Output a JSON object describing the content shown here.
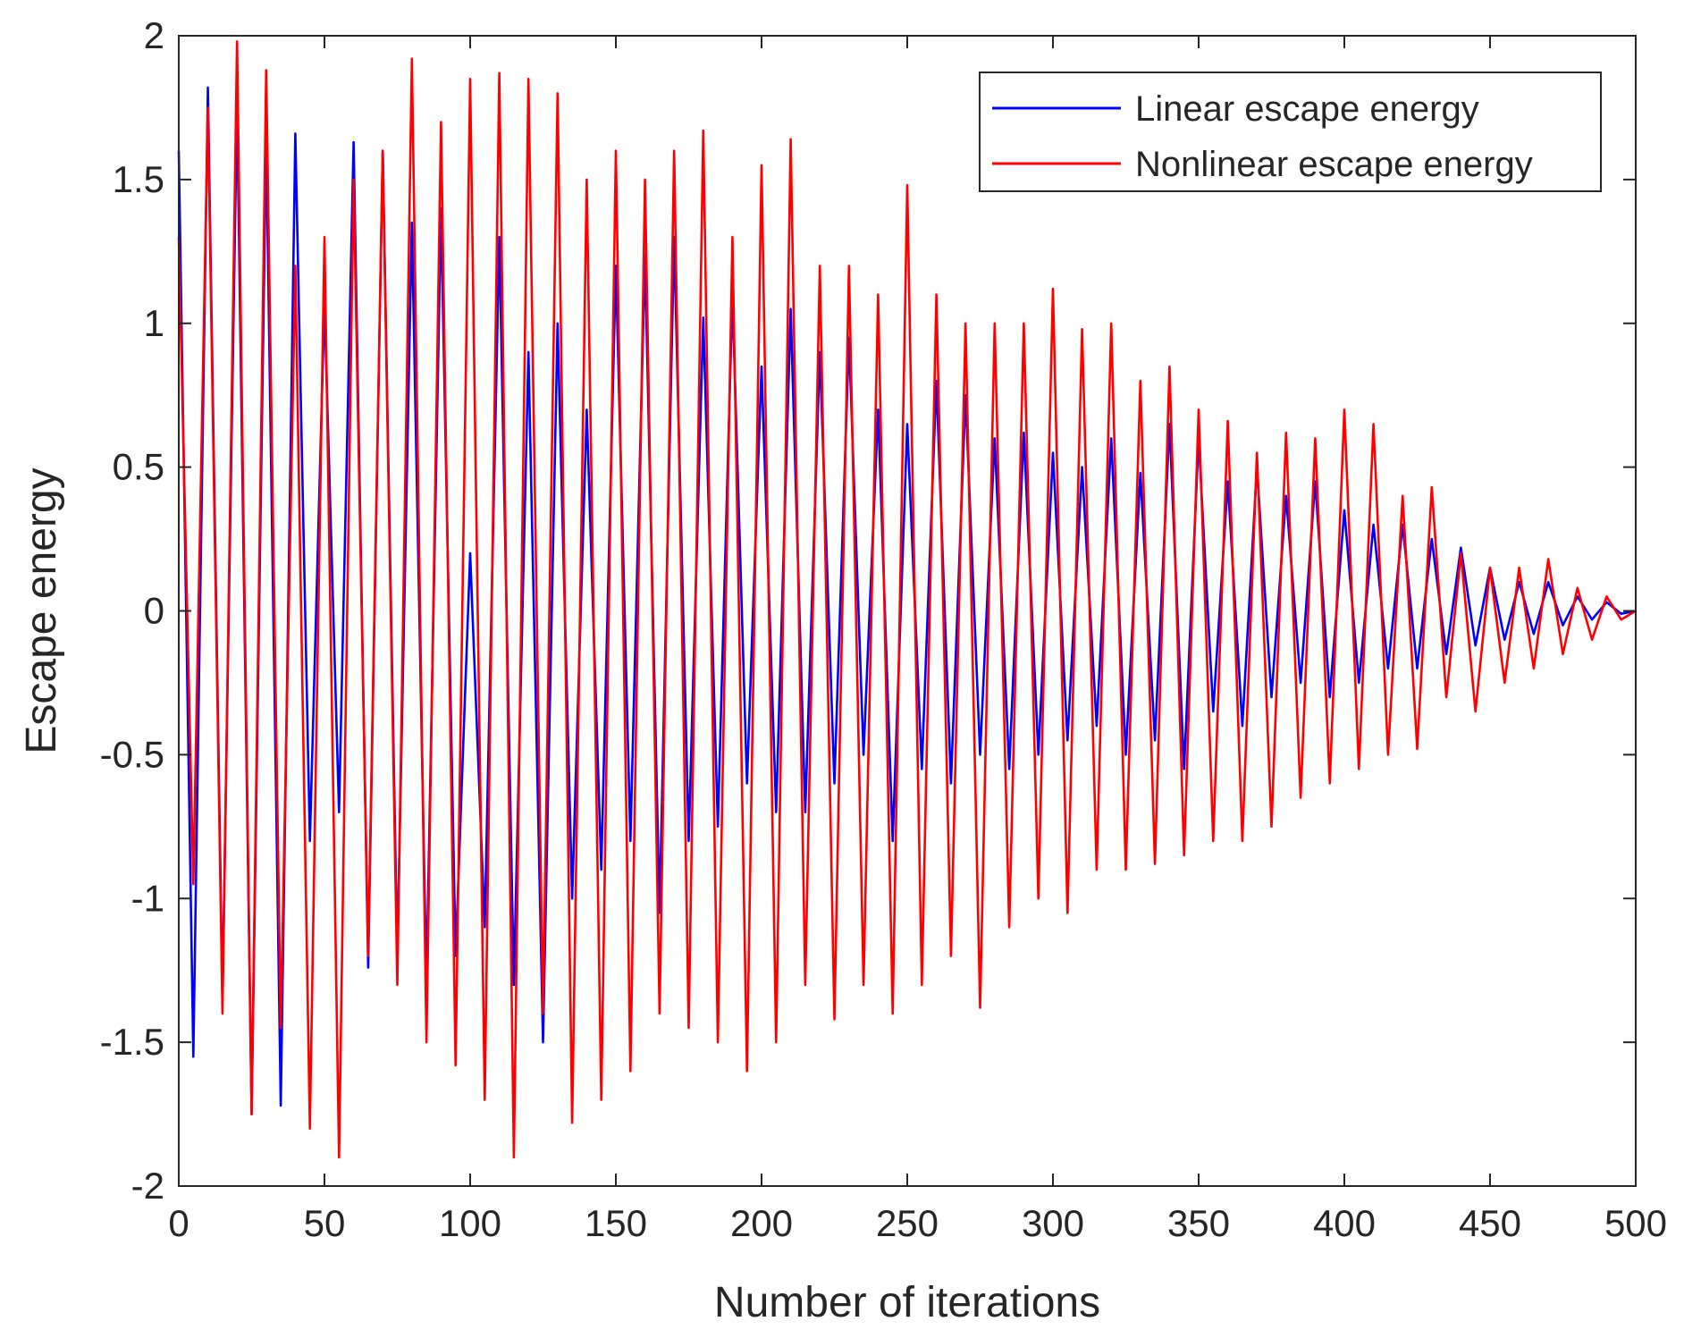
{
  "chart_data": {
    "type": "line",
    "title": "",
    "xlabel": "Number of iterations",
    "ylabel": "Escape energy",
    "xlim": [
      0,
      500
    ],
    "ylim": [
      -2,
      2
    ],
    "x_ticks": [
      0,
      50,
      100,
      150,
      200,
      250,
      300,
      350,
      400,
      450,
      500
    ],
    "x_tick_labels": [
      "0",
      "50",
      "100",
      "150",
      "200",
      "250",
      "300",
      "350",
      "400",
      "450",
      "500"
    ],
    "y_ticks": [
      -2,
      -1.5,
      -1,
      -0.5,
      0,
      0.5,
      1,
      1.5,
      2
    ],
    "y_tick_labels": [
      "-2",
      "-1.5",
      "-1",
      "-0.5",
      "0",
      "0.5",
      "1",
      "1.5",
      "2"
    ],
    "grid": false,
    "legend_position": "top-right",
    "series": [
      {
        "name": "Linear escape energy",
        "color": "#0000ff",
        "x": [
          0,
          5,
          10,
          15,
          20,
          25,
          30,
          35,
          40,
          45,
          50,
          55,
          60,
          65,
          70,
          75,
          80,
          85,
          90,
          95,
          100,
          105,
          110,
          115,
          120,
          125,
          130,
          135,
          140,
          145,
          150,
          155,
          160,
          165,
          170,
          175,
          180,
          185,
          190,
          195,
          200,
          205,
          210,
          215,
          220,
          225,
          230,
          235,
          240,
          245,
          250,
          255,
          260,
          265,
          270,
          275,
          280,
          285,
          290,
          295,
          300,
          305,
          310,
          315,
          320,
          325,
          330,
          335,
          340,
          345,
          350,
          355,
          360,
          365,
          370,
          375,
          380,
          385,
          390,
          395,
          400,
          405,
          410,
          415,
          420,
          425,
          430,
          435,
          440,
          445,
          450,
          455,
          460,
          465,
          470,
          475,
          480,
          485,
          490,
          495,
          500
        ],
        "values": [
          1.6,
          -1.55,
          1.82,
          -1.35,
          1.77,
          -1.75,
          1.65,
          -1.72,
          1.66,
          -0.8,
          1.07,
          -0.7,
          1.63,
          -1.24,
          1.6,
          -1.2,
          1.35,
          -1.3,
          1.4,
          -1.2,
          0.2,
          -1.1,
          1.3,
          -1.3,
          0.9,
          -1.5,
          1.0,
          -1.0,
          0.7,
          -0.9,
          1.2,
          -0.8,
          1.24,
          -1.05,
          1.3,
          -0.8,
          1.02,
          -0.75,
          1.1,
          -0.6,
          0.85,
          -0.7,
          1.05,
          -0.7,
          0.9,
          -0.6,
          0.95,
          -0.5,
          0.7,
          -0.8,
          0.65,
          -0.55,
          0.8,
          -0.6,
          0.75,
          -0.5,
          0.6,
          -0.55,
          0.62,
          -0.5,
          0.55,
          -0.45,
          0.5,
          -0.4,
          0.6,
          -0.5,
          0.48,
          -0.45,
          0.65,
          -0.55,
          0.6,
          -0.35,
          0.45,
          -0.4,
          0.5,
          -0.3,
          0.4,
          -0.25,
          0.45,
          -0.3,
          0.35,
          -0.25,
          0.3,
          -0.2,
          0.3,
          -0.2,
          0.25,
          -0.15,
          0.22,
          -0.12,
          0.15,
          -0.1,
          0.1,
          -0.08,
          0.1,
          -0.05,
          0.05,
          -0.03,
          0.03,
          -0.01,
          0.0
        ]
      },
      {
        "name": "Nonlinear escape energy",
        "color": "#ff0000",
        "x": [
          0,
          5,
          10,
          15,
          20,
          25,
          30,
          35,
          40,
          45,
          50,
          55,
          60,
          65,
          70,
          75,
          80,
          85,
          90,
          95,
          100,
          105,
          110,
          115,
          120,
          125,
          130,
          135,
          140,
          145,
          150,
          155,
          160,
          165,
          170,
          175,
          180,
          185,
          190,
          195,
          200,
          205,
          210,
          215,
          220,
          225,
          230,
          235,
          240,
          245,
          250,
          255,
          260,
          265,
          270,
          275,
          280,
          285,
          290,
          295,
          300,
          305,
          310,
          315,
          320,
          325,
          330,
          335,
          340,
          345,
          350,
          355,
          360,
          365,
          370,
          375,
          380,
          385,
          390,
          395,
          400,
          405,
          410,
          415,
          420,
          425,
          430,
          435,
          440,
          445,
          450,
          455,
          460,
          465,
          470,
          475,
          480,
          485,
          490,
          495,
          500
        ],
        "values": [
          1.3,
          -0.95,
          1.75,
          -1.4,
          1.98,
          -1.75,
          1.88,
          -1.45,
          1.2,
          -1.8,
          1.3,
          -1.9,
          1.5,
          -1.2,
          1.6,
          -1.3,
          1.92,
          -1.5,
          1.7,
          -1.58,
          1.85,
          -1.7,
          1.87,
          -1.9,
          1.85,
          -1.4,
          1.8,
          -1.78,
          1.5,
          -1.7,
          1.6,
          -1.6,
          1.5,
          -1.4,
          1.6,
          -1.45,
          1.67,
          -1.5,
          1.3,
          -1.6,
          1.55,
          -1.5,
          1.64,
          -1.3,
          1.2,
          -1.42,
          1.2,
          -1.3,
          1.1,
          -1.4,
          1.48,
          -1.3,
          1.1,
          -1.2,
          1.0,
          -1.38,
          1.0,
          -1.1,
          1.0,
          -1.0,
          1.12,
          -1.05,
          0.98,
          -0.9,
          1.0,
          -0.9,
          0.8,
          -0.88,
          0.85,
          -0.85,
          0.7,
          -0.8,
          0.66,
          -0.8,
          0.55,
          -0.75,
          0.62,
          -0.65,
          0.6,
          -0.6,
          0.7,
          -0.55,
          0.65,
          -0.5,
          0.4,
          -0.48,
          0.43,
          -0.3,
          0.2,
          -0.35,
          0.15,
          -0.25,
          0.15,
          -0.2,
          0.18,
          -0.15,
          0.08,
          -0.1,
          0.05,
          -0.03,
          0.0
        ]
      }
    ]
  }
}
